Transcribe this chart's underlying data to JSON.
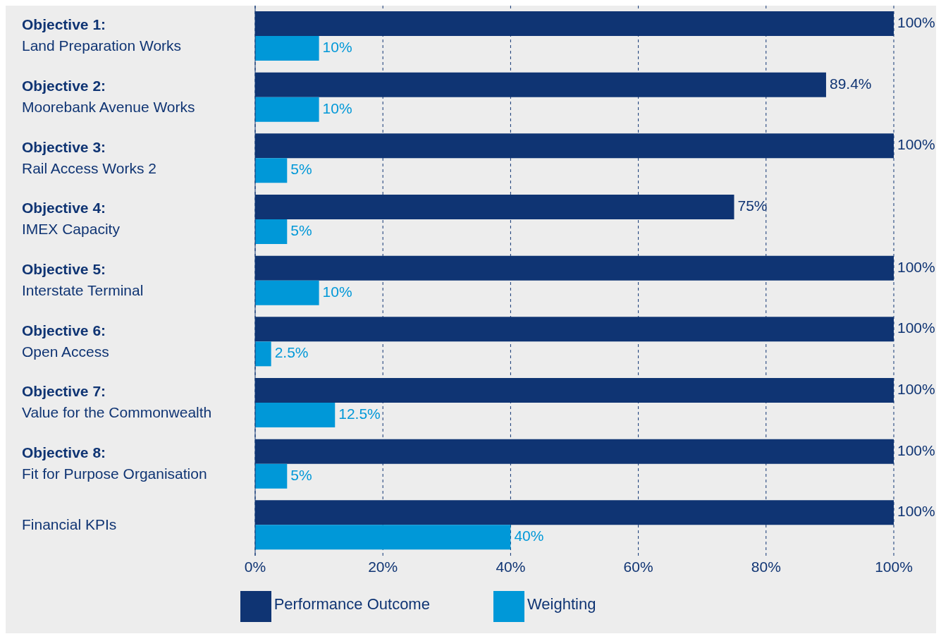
{
  "chart_data": {
    "type": "bar",
    "orientation": "horizontal",
    "categories": [
      "Objective 1:\nLand Preparation Works",
      "Objective 2:\nMoorebank Avenue Works",
      "Objective 3:\nRail Access Works 2",
      "Objective 4:\nIMEX Capacity",
      "Objective 5:\nInterstate Terminal",
      "Objective 6:\nOpen Access",
      "Objective 7:\nValue for the Commonwealth",
      "Objective 8:\nFit for Purpose Organisation",
      "Financial KPIs"
    ],
    "series": [
      {
        "name": "Performance Outcome",
        "color": "#0f3473",
        "values": [
          100,
          89.4,
          100,
          75,
          100,
          100,
          100,
          100,
          100
        ],
        "value_labels": [
          "100%",
          "89.4%",
          "100%",
          "75%",
          "100%",
          "100%",
          "100%",
          "100%",
          "100%"
        ]
      },
      {
        "name": "Weighting",
        "color": "#0098d8",
        "values": [
          10,
          10,
          5,
          5,
          10,
          2.5,
          12.5,
          5,
          40
        ],
        "value_labels": [
          "10%",
          "10%",
          "5%",
          "5%",
          "10%",
          "2.5%",
          "12.5%",
          "5%",
          "40%"
        ]
      }
    ],
    "xlim": [
      0,
      100
    ],
    "xticks": [
      {
        "value": 0,
        "label": "0%"
      },
      {
        "value": 20,
        "label": "20%"
      },
      {
        "value": 40,
        "label": "40%"
      },
      {
        "value": 60,
        "label": "60%"
      },
      {
        "value": 80,
        "label": "80%"
      },
      {
        "value": 100,
        "label": "100%"
      }
    ],
    "grid": "x",
    "legend": "bottom"
  }
}
